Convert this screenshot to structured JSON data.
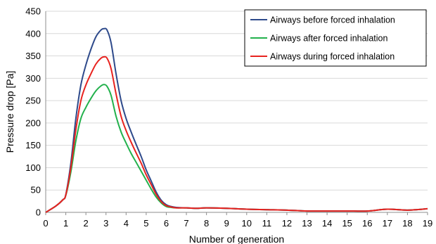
{
  "chart_data": {
    "type": "line",
    "xlabel": "Number of generation",
    "ylabel": "Pressure drop [Pa]",
    "xlim": [
      0,
      19
    ],
    "ylim": [
      0,
      450
    ],
    "xticks": [
      0,
      1,
      2,
      3,
      4,
      5,
      6,
      7,
      8,
      9,
      10,
      11,
      12,
      13,
      14,
      15,
      16,
      17,
      18,
      19
    ],
    "yticks": [
      0,
      50,
      100,
      150,
      200,
      250,
      300,
      350,
      400,
      450
    ],
    "grid": "horizontal",
    "legend_position": "top-right",
    "series": [
      {
        "name": "Airways before forced inhalation",
        "color": "#2e4a8b",
        "points": [
          [
            0,
            0
          ],
          [
            0.5,
            14
          ],
          [
            0.85,
            28
          ],
          [
            1,
            40
          ],
          [
            1.25,
            110
          ],
          [
            1.5,
            210
          ],
          [
            1.75,
            285
          ],
          [
            2,
            330
          ],
          [
            2.25,
            365
          ],
          [
            2.5,
            393
          ],
          [
            2.75,
            408
          ],
          [
            2.9,
            411
          ],
          [
            3.05,
            408
          ],
          [
            3.25,
            380
          ],
          [
            3.5,
            310
          ],
          [
            3.75,
            250
          ],
          [
            4,
            210
          ],
          [
            4.25,
            180
          ],
          [
            4.5,
            152
          ],
          [
            4.75,
            125
          ],
          [
            5,
            95
          ],
          [
            5.25,
            70
          ],
          [
            5.5,
            45
          ],
          [
            5.75,
            27
          ],
          [
            6,
            17
          ],
          [
            6.25,
            13
          ],
          [
            6.5,
            11
          ],
          [
            7,
            10
          ],
          [
            7.5,
            9
          ],
          [
            8,
            10
          ],
          [
            9,
            9
          ],
          [
            10,
            7
          ],
          [
            11,
            6
          ],
          [
            12,
            5
          ],
          [
            13,
            3
          ],
          [
            14,
            3
          ],
          [
            15,
            3
          ],
          [
            16,
            3
          ],
          [
            17,
            7
          ],
          [
            18,
            5
          ],
          [
            19,
            8
          ]
        ]
      },
      {
        "name": "Airways after forced inhalation",
        "color": "#22b14c",
        "points": [
          [
            0,
            0
          ],
          [
            0.5,
            14
          ],
          [
            0.85,
            28
          ],
          [
            1,
            38
          ],
          [
            1.25,
            90
          ],
          [
            1.5,
            160
          ],
          [
            1.75,
            210
          ],
          [
            2,
            235
          ],
          [
            2.25,
            255
          ],
          [
            2.5,
            272
          ],
          [
            2.75,
            283
          ],
          [
            2.9,
            286
          ],
          [
            3.05,
            282
          ],
          [
            3.25,
            262
          ],
          [
            3.5,
            215
          ],
          [
            3.75,
            180
          ],
          [
            4,
            155
          ],
          [
            4.25,
            132
          ],
          [
            4.5,
            112
          ],
          [
            4.75,
            92
          ],
          [
            5,
            72
          ],
          [
            5.25,
            52
          ],
          [
            5.5,
            34
          ],
          [
            5.75,
            21
          ],
          [
            6,
            13
          ],
          [
            6.25,
            11
          ],
          [
            6.5,
            10
          ],
          [
            7,
            10
          ],
          [
            7.5,
            9
          ],
          [
            8,
            10
          ],
          [
            9,
            9
          ],
          [
            10,
            7
          ],
          [
            11,
            6
          ],
          [
            12,
            5
          ],
          [
            13,
            3
          ],
          [
            14,
            3
          ],
          [
            15,
            3
          ],
          [
            16,
            3
          ],
          [
            17,
            7
          ],
          [
            18,
            5
          ],
          [
            19,
            8
          ]
        ]
      },
      {
        "name": "Airways during forced inhalation",
        "color": "#e8231f",
        "points": [
          [
            0,
            0
          ],
          [
            0.5,
            14
          ],
          [
            0.85,
            28
          ],
          [
            1,
            39
          ],
          [
            1.25,
            100
          ],
          [
            1.5,
            185
          ],
          [
            1.75,
            250
          ],
          [
            2,
            285
          ],
          [
            2.25,
            310
          ],
          [
            2.5,
            332
          ],
          [
            2.75,
            345
          ],
          [
            2.9,
            348
          ],
          [
            3.05,
            345
          ],
          [
            3.25,
            322
          ],
          [
            3.5,
            265
          ],
          [
            3.75,
            215
          ],
          [
            4,
            183
          ],
          [
            4.25,
            157
          ],
          [
            4.5,
            133
          ],
          [
            4.75,
            110
          ],
          [
            5,
            84
          ],
          [
            5.25,
            62
          ],
          [
            5.5,
            40
          ],
          [
            5.75,
            24
          ],
          [
            6,
            15
          ],
          [
            6.25,
            12
          ],
          [
            6.5,
            10
          ],
          [
            7,
            10
          ],
          [
            7.5,
            9
          ],
          [
            8,
            10
          ],
          [
            9,
            9
          ],
          [
            10,
            7
          ],
          [
            11,
            6
          ],
          [
            12,
            5
          ],
          [
            13,
            3
          ],
          [
            14,
            3
          ],
          [
            15,
            3
          ],
          [
            16,
            3
          ],
          [
            17,
            7
          ],
          [
            18,
            5
          ],
          [
            19,
            8
          ]
        ]
      }
    ]
  }
}
